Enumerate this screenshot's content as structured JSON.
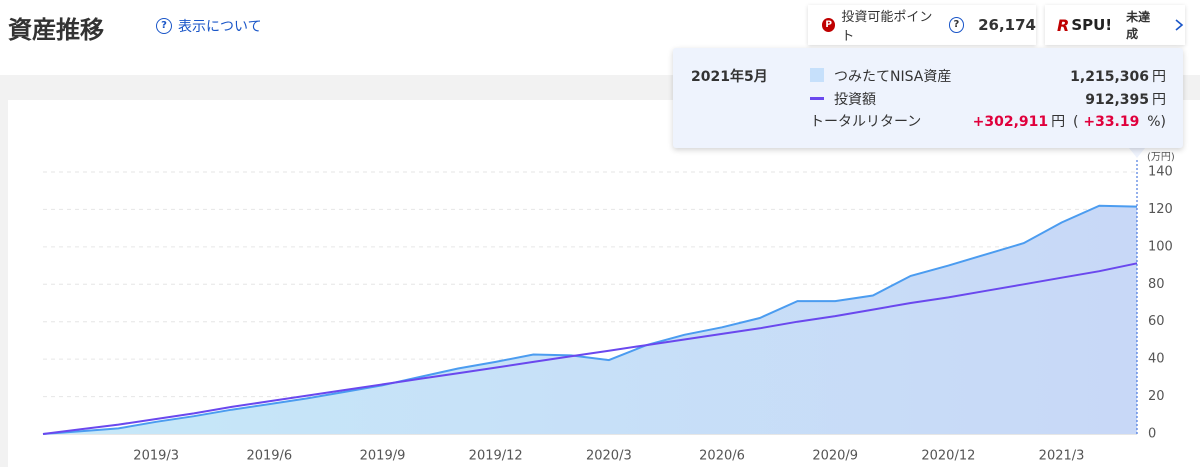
{
  "header": {
    "title": "資産推移",
    "help_link": "表示について",
    "points_icon": "P",
    "points_label": "投資可能ポイント",
    "points": "26,174",
    "spu_logo_mark": "R",
    "spu_logo": "SPU!",
    "spu_status": "未達成"
  },
  "tooltip": {
    "date": "2021年5月",
    "rows": [
      {
        "value": "1,215,306",
        "unit": "円"
      },
      {
        "value": "912,395",
        "unit": "円"
      }
    ],
    "return_label": "トータルリターン",
    "return_value": "+302,911",
    "return_unit": "円",
    "return_pct_open": "(",
    "return_pct": "+33.19",
    "return_pct_close": "%)"
  },
  "chart_data": {
    "type": "line",
    "y_unit": "(万円)",
    "categories": [
      "null",
      null,
      null,
      "2019/3",
      null,
      null,
      "2019/6",
      null,
      null,
      "2019/9",
      null,
      null,
      "2019/12",
      null,
      null,
      "2020/3",
      null,
      null,
      "2020/6",
      null,
      null,
      "2020/9",
      null,
      null,
      "2020/12",
      null,
      null,
      "2021/3",
      null,
      null
    ],
    "series": [
      {
        "name": "つみたてNISA資産",
        "color": "#4b9cf0",
        "area": true,
        "values": [
          0,
          1.5,
          3,
          6.5,
          9.5,
          13,
          16,
          19,
          22.5,
          26,
          30.5,
          35,
          38.5,
          42.5,
          42,
          39.5,
          47.5,
          53,
          57,
          62,
          71,
          71,
          74,
          84.5,
          90,
          96,
          102,
          113,
          122,
          121.5
        ]
      },
      {
        "name": "投資額",
        "color": "#6a48ee",
        "area": false,
        "values": [
          0,
          2.5,
          5,
          8,
          11,
          14.5,
          17.5,
          20.5,
          23.5,
          26.5,
          29.5,
          32.5,
          35.5,
          38.5,
          41.5,
          44.5,
          47.5,
          50.5,
          53.5,
          56.5,
          60,
          63,
          66.5,
          70,
          73,
          76.5,
          80,
          83.5,
          87,
          91.2
        ]
      }
    ],
    "ylim": [
      0,
      140
    ],
    "yticks": [
      0,
      20,
      40,
      60,
      80,
      100,
      120,
      140
    ],
    "grid": true
  }
}
